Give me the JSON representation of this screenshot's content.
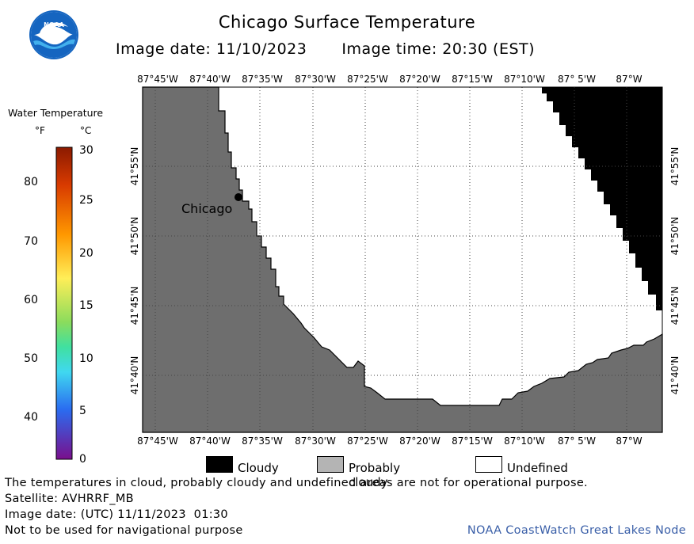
{
  "header": {
    "title": "Chicago Surface Temperature",
    "image_date_label": "Image date: 11/10/2023",
    "image_time_label": "Image time: 20:30 (EST)"
  },
  "logo": {
    "text": "NOAA",
    "icon": "noaa-logo-icon",
    "colors": {
      "blue": "#1565c0",
      "light": "#4fc3f7"
    }
  },
  "legend_scale": {
    "title": "Water Temperature",
    "unit_f": "°F",
    "unit_c": "°C",
    "fahrenheit_ticks": [
      "80",
      "70",
      "60",
      "50",
      "40"
    ],
    "celsius_ticks": [
      "30",
      "25",
      "20",
      "15",
      "10",
      "5",
      "0"
    ]
  },
  "map": {
    "longitude_labels": [
      "87°45'W",
      "87°40'W",
      "87°35'W",
      "87°30'W",
      "87°25'W",
      "87°20'W",
      "87°15'W",
      "87°10'W",
      "87° 5'W",
      "87°W"
    ],
    "latitude_labels": [
      "41°55'N",
      "41°50'N",
      "41°45'N",
      "41°40'N"
    ],
    "city": "Chicago",
    "colors": {
      "land": "#6e6e6e",
      "cloudy": "#000000",
      "undefined": "#ffffff",
      "probably_cloudy": "#b4b4b4"
    }
  },
  "legend_categories": [
    {
      "label": "Cloudy",
      "color": "#000000"
    },
    {
      "label": "Probably cloudy",
      "color": "#b4b4b4"
    },
    {
      "label": "Undefined",
      "color": "#ffffff"
    }
  ],
  "footer": {
    "disclaimer": "The temperatures in cloud, probably cloudy and undefined areas are not for operational purpose.",
    "satellite": "Satellite: AVHRRF_MB",
    "utc_date": "Image date: (UTC) 11/11/2023  01:30",
    "navigation": "Not to be used for navigational purpose",
    "credit": "NOAA CoastWatch Great Lakes Node"
  }
}
